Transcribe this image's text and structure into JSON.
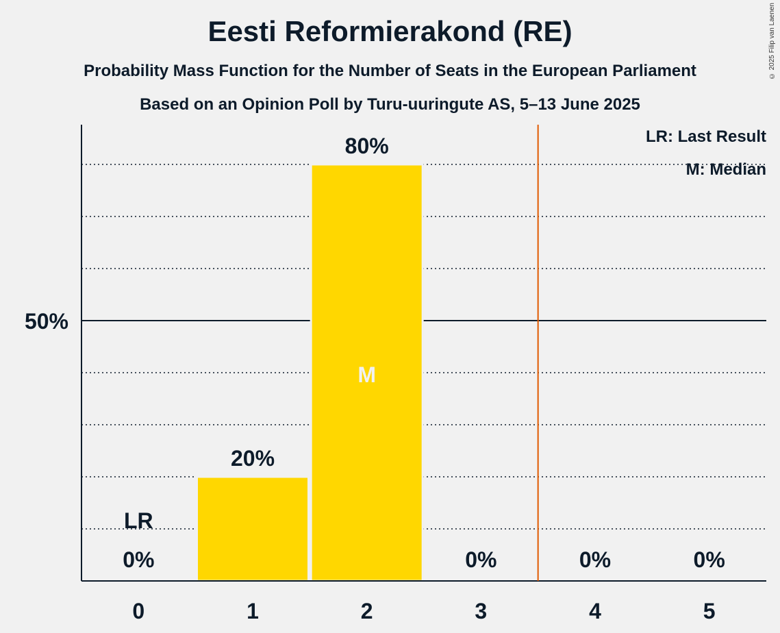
{
  "chart_data": {
    "type": "bar",
    "title": "Eesti Reformierakond (RE)",
    "subtitle": "Probability Mass Function for the Number of Seats in the European Parliament",
    "subtitle2": "Based on an Opinion Poll by Turu-uuringute AS, 5–13 June 2025",
    "categories": [
      "0",
      "1",
      "2",
      "3",
      "4",
      "5"
    ],
    "values": [
      0,
      20,
      80,
      0,
      0,
      0
    ],
    "value_labels": [
      "0%",
      "20%",
      "80%",
      "0%",
      "0%",
      "0%"
    ],
    "ylim": [
      0,
      100
    ],
    "ytick_label": "50%",
    "last_result_seat": 0,
    "last_result_marker": "LR",
    "median_seat": 2,
    "median_marker": "M",
    "threshold_after_seat": 3,
    "legend": [
      "LR: Last Result",
      "M: Median"
    ],
    "grid": true,
    "legend_position": "top-right",
    "colors": {
      "bar": "#FFD700",
      "threshold": "#E05A00",
      "text": "#0d1b2a",
      "median_text": "#f1f1f1"
    }
  },
  "copyright": "© 2025 Filip van Laenen"
}
